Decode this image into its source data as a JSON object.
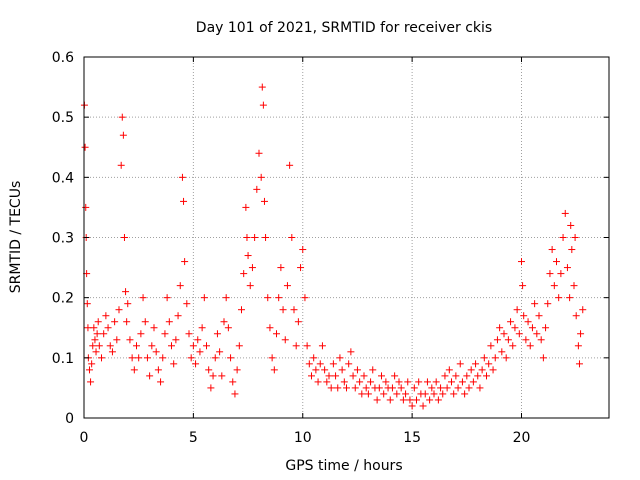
{
  "chart_data": {
    "type": "scatter",
    "title": "Day 101 of 2021, SRMTID for receiver ckis",
    "xlabel": "GPS time / hours",
    "ylabel": "SRMTID / TECUs",
    "xlim": [
      0,
      24
    ],
    "ylim": [
      0,
      0.6
    ],
    "xticks": [
      0,
      5,
      10,
      15,
      20
    ],
    "xtick_labels": [
      "0",
      "5",
      "10",
      "15",
      "20"
    ],
    "yticks": [
      0,
      0.1,
      0.2,
      0.3,
      0.4,
      0.5,
      0.6
    ],
    "ytick_labels": [
      "0",
      "0.1",
      "0.2",
      "0.3",
      "0.4",
      "0.5",
      "0.6"
    ],
    "grid": true,
    "marker": "+",
    "series": [
      {
        "name": "SRMTID",
        "color": "#ff0000",
        "points": [
          [
            0.02,
            0.52
          ],
          [
            0.05,
            0.45
          ],
          [
            0.08,
            0.35
          ],
          [
            0.1,
            0.3
          ],
          [
            0.12,
            0.24
          ],
          [
            0.15,
            0.19
          ],
          [
            0.18,
            0.15
          ],
          [
            0.2,
            0.1
          ],
          [
            0.25,
            0.08
          ],
          [
            0.3,
            0.06
          ],
          [
            0.35,
            0.09
          ],
          [
            0.4,
            0.12
          ],
          [
            0.45,
            0.15
          ],
          [
            0.5,
            0.13
          ],
          [
            0.55,
            0.11
          ],
          [
            0.6,
            0.14
          ],
          [
            0.65,
            0.16
          ],
          [
            0.7,
            0.12
          ],
          [
            0.8,
            0.1
          ],
          [
            0.9,
            0.14
          ],
          [
            1.0,
            0.17
          ],
          [
            1.1,
            0.15
          ],
          [
            1.2,
            0.12
          ],
          [
            1.3,
            0.11
          ],
          [
            1.4,
            0.16
          ],
          [
            1.5,
            0.13
          ],
          [
            1.6,
            0.18
          ],
          [
            1.7,
            0.42
          ],
          [
            1.75,
            0.5
          ],
          [
            1.8,
            0.47
          ],
          [
            1.85,
            0.3
          ],
          [
            1.9,
            0.21
          ],
          [
            1.95,
            0.16
          ],
          [
            2.0,
            0.19
          ],
          [
            2.1,
            0.13
          ],
          [
            2.2,
            0.1
          ],
          [
            2.3,
            0.08
          ],
          [
            2.4,
            0.12
          ],
          [
            2.5,
            0.1
          ],
          [
            2.6,
            0.14
          ],
          [
            2.7,
            0.2
          ],
          [
            2.8,
            0.16
          ],
          [
            2.9,
            0.1
          ],
          [
            3.0,
            0.07
          ],
          [
            3.1,
            0.12
          ],
          [
            3.2,
            0.15
          ],
          [
            3.3,
            0.11
          ],
          [
            3.4,
            0.08
          ],
          [
            3.5,
            0.06
          ],
          [
            3.6,
            0.1
          ],
          [
            3.7,
            0.14
          ],
          [
            3.8,
            0.2
          ],
          [
            3.9,
            0.16
          ],
          [
            4.0,
            0.12
          ],
          [
            4.1,
            0.09
          ],
          [
            4.2,
            0.13
          ],
          [
            4.3,
            0.17
          ],
          [
            4.4,
            0.22
          ],
          [
            4.5,
            0.4
          ],
          [
            4.55,
            0.36
          ],
          [
            4.6,
            0.26
          ],
          [
            4.7,
            0.19
          ],
          [
            4.8,
            0.14
          ],
          [
            4.9,
            0.1
          ],
          [
            5.0,
            0.12
          ],
          [
            5.1,
            0.09
          ],
          [
            5.2,
            0.13
          ],
          [
            5.3,
            0.11
          ],
          [
            5.4,
            0.15
          ],
          [
            5.5,
            0.2
          ],
          [
            5.6,
            0.12
          ],
          [
            5.7,
            0.08
          ],
          [
            5.8,
            0.05
          ],
          [
            5.9,
            0.07
          ],
          [
            6.0,
            0.1
          ],
          [
            6.1,
            0.14
          ],
          [
            6.2,
            0.11
          ],
          [
            6.3,
            0.07
          ],
          [
            6.4,
            0.16
          ],
          [
            6.5,
            0.2
          ],
          [
            6.6,
            0.15
          ],
          [
            6.7,
            0.1
          ],
          [
            6.8,
            0.06
          ],
          [
            6.9,
            0.04
          ],
          [
            7.0,
            0.08
          ],
          [
            7.1,
            0.12
          ],
          [
            7.2,
            0.18
          ],
          [
            7.3,
            0.24
          ],
          [
            7.4,
            0.35
          ],
          [
            7.45,
            0.3
          ],
          [
            7.5,
            0.27
          ],
          [
            7.6,
            0.22
          ],
          [
            7.7,
            0.25
          ],
          [
            7.8,
            0.3
          ],
          [
            7.9,
            0.38
          ],
          [
            8.0,
            0.44
          ],
          [
            8.1,
            0.4
          ],
          [
            8.15,
            0.55
          ],
          [
            8.2,
            0.52
          ],
          [
            8.25,
            0.36
          ],
          [
            8.3,
            0.3
          ],
          [
            8.4,
            0.2
          ],
          [
            8.5,
            0.15
          ],
          [
            8.6,
            0.1
          ],
          [
            8.7,
            0.08
          ],
          [
            8.8,
            0.14
          ],
          [
            8.9,
            0.2
          ],
          [
            9.0,
            0.25
          ],
          [
            9.1,
            0.18
          ],
          [
            9.2,
            0.13
          ],
          [
            9.3,
            0.22
          ],
          [
            9.4,
            0.42
          ],
          [
            9.5,
            0.3
          ],
          [
            9.6,
            0.18
          ],
          [
            9.7,
            0.12
          ],
          [
            9.8,
            0.16
          ],
          [
            9.9,
            0.25
          ],
          [
            10.0,
            0.28
          ],
          [
            10.1,
            0.2
          ],
          [
            10.2,
            0.12
          ],
          [
            10.3,
            0.09
          ],
          [
            10.4,
            0.07
          ],
          [
            10.5,
            0.1
          ],
          [
            10.6,
            0.08
          ],
          [
            10.7,
            0.06
          ],
          [
            10.8,
            0.09
          ],
          [
            10.9,
            0.12
          ],
          [
            11.0,
            0.08
          ],
          [
            11.1,
            0.06
          ],
          [
            11.2,
            0.07
          ],
          [
            11.3,
            0.05
          ],
          [
            11.4,
            0.09
          ],
          [
            11.5,
            0.07
          ],
          [
            11.6,
            0.05
          ],
          [
            11.7,
            0.1
          ],
          [
            11.8,
            0.08
          ],
          [
            11.9,
            0.06
          ],
          [
            12.0,
            0.05
          ],
          [
            12.1,
            0.09
          ],
          [
            12.2,
            0.11
          ],
          [
            12.3,
            0.07
          ],
          [
            12.4,
            0.05
          ],
          [
            12.5,
            0.08
          ],
          [
            12.6,
            0.06
          ],
          [
            12.7,
            0.04
          ],
          [
            12.8,
            0.07
          ],
          [
            12.9,
            0.05
          ],
          [
            13.0,
            0.04
          ],
          [
            13.1,
            0.06
          ],
          [
            13.2,
            0.08
          ],
          [
            13.3,
            0.05
          ],
          [
            13.4,
            0.03
          ],
          [
            13.5,
            0.05
          ],
          [
            13.6,
            0.07
          ],
          [
            13.7,
            0.04
          ],
          [
            13.8,
            0.06
          ],
          [
            13.9,
            0.05
          ],
          [
            14.0,
            0.03
          ],
          [
            14.1,
            0.05
          ],
          [
            14.2,
            0.07
          ],
          [
            14.3,
            0.04
          ],
          [
            14.4,
            0.06
          ],
          [
            14.5,
            0.05
          ],
          [
            14.6,
            0.03
          ],
          [
            14.7,
            0.04
          ],
          [
            14.8,
            0.06
          ],
          [
            14.9,
            0.03
          ],
          [
            15.0,
            0.02
          ],
          [
            15.1,
            0.05
          ],
          [
            15.2,
            0.03
          ],
          [
            15.3,
            0.06
          ],
          [
            15.4,
            0.04
          ],
          [
            15.5,
            0.02
          ],
          [
            15.6,
            0.04
          ],
          [
            15.7,
            0.06
          ],
          [
            15.8,
            0.03
          ],
          [
            15.9,
            0.05
          ],
          [
            16.0,
            0.04
          ],
          [
            16.1,
            0.06
          ],
          [
            16.2,
            0.03
          ],
          [
            16.3,
            0.05
          ],
          [
            16.4,
            0.04
          ],
          [
            16.5,
            0.07
          ],
          [
            16.6,
            0.05
          ],
          [
            16.7,
            0.08
          ],
          [
            16.8,
            0.06
          ],
          [
            16.9,
            0.04
          ],
          [
            17.0,
            0.07
          ],
          [
            17.1,
            0.05
          ],
          [
            17.2,
            0.09
          ],
          [
            17.3,
            0.06
          ],
          [
            17.4,
            0.04
          ],
          [
            17.5,
            0.07
          ],
          [
            17.6,
            0.05
          ],
          [
            17.7,
            0.08
          ],
          [
            17.8,
            0.06
          ],
          [
            17.9,
            0.09
          ],
          [
            18.0,
            0.07
          ],
          [
            18.1,
            0.05
          ],
          [
            18.2,
            0.08
          ],
          [
            18.3,
            0.1
          ],
          [
            18.4,
            0.07
          ],
          [
            18.5,
            0.09
          ],
          [
            18.6,
            0.12
          ],
          [
            18.7,
            0.08
          ],
          [
            18.8,
            0.1
          ],
          [
            18.9,
            0.13
          ],
          [
            19.0,
            0.15
          ],
          [
            19.1,
            0.11
          ],
          [
            19.2,
            0.14
          ],
          [
            19.3,
            0.1
          ],
          [
            19.4,
            0.13
          ],
          [
            19.5,
            0.16
          ],
          [
            19.6,
            0.12
          ],
          [
            19.7,
            0.15
          ],
          [
            19.8,
            0.18
          ],
          [
            19.9,
            0.14
          ],
          [
            20.0,
            0.26
          ],
          [
            20.05,
            0.22
          ],
          [
            20.1,
            0.17
          ],
          [
            20.2,
            0.13
          ],
          [
            20.3,
            0.16
          ],
          [
            20.4,
            0.12
          ],
          [
            20.5,
            0.15
          ],
          [
            20.6,
            0.19
          ],
          [
            20.7,
            0.14
          ],
          [
            20.8,
            0.17
          ],
          [
            20.9,
            0.13
          ],
          [
            21.0,
            0.1
          ],
          [
            21.1,
            0.15
          ],
          [
            21.2,
            0.19
          ],
          [
            21.3,
            0.24
          ],
          [
            21.4,
            0.28
          ],
          [
            21.5,
            0.22
          ],
          [
            21.6,
            0.26
          ],
          [
            21.7,
            0.2
          ],
          [
            21.8,
            0.24
          ],
          [
            21.9,
            0.3
          ],
          [
            22.0,
            0.34
          ],
          [
            22.1,
            0.25
          ],
          [
            22.2,
            0.2
          ],
          [
            22.25,
            0.32
          ],
          [
            22.3,
            0.28
          ],
          [
            22.4,
            0.22
          ],
          [
            22.45,
            0.3
          ],
          [
            22.5,
            0.17
          ],
          [
            22.6,
            0.12
          ],
          [
            22.65,
            0.09
          ],
          [
            22.7,
            0.14
          ],
          [
            22.8,
            0.18
          ]
        ]
      }
    ]
  }
}
